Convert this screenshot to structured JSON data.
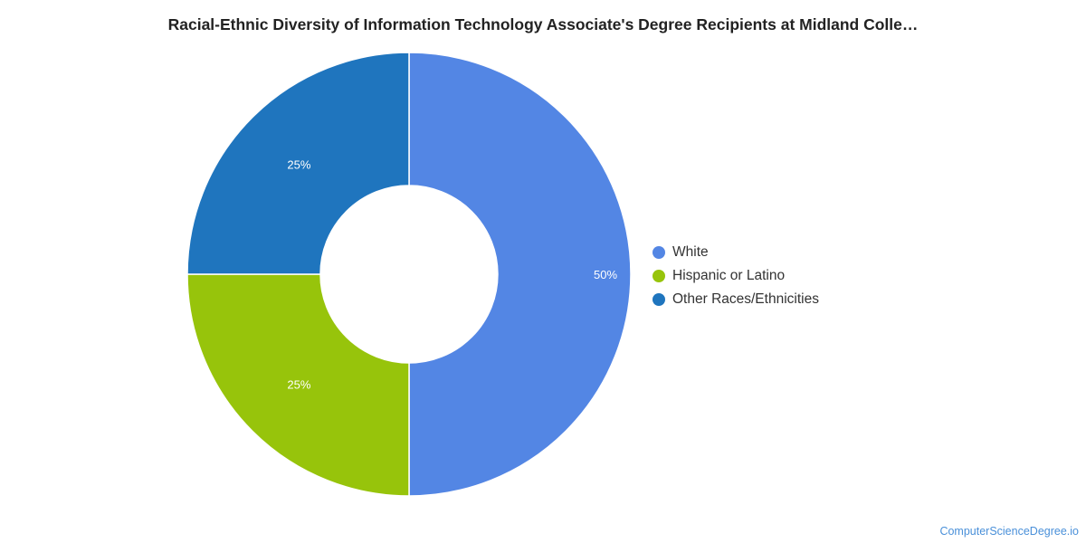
{
  "title": "Racial-Ethnic Diversity of Information Technology Associate's Degree Recipients at Midland Colle…",
  "source": "ComputerScienceDegree.io",
  "chart_data": {
    "type": "pie",
    "donut": true,
    "categories": [
      "White",
      "Hispanic or Latino",
      "Other Races/Ethnicities"
    ],
    "values": [
      50,
      25,
      25
    ],
    "labels": [
      "50%",
      "25%",
      "25%"
    ],
    "colors": [
      "#5386e4",
      "#97c40b",
      "#1f75be"
    ],
    "legend_position": "right"
  }
}
